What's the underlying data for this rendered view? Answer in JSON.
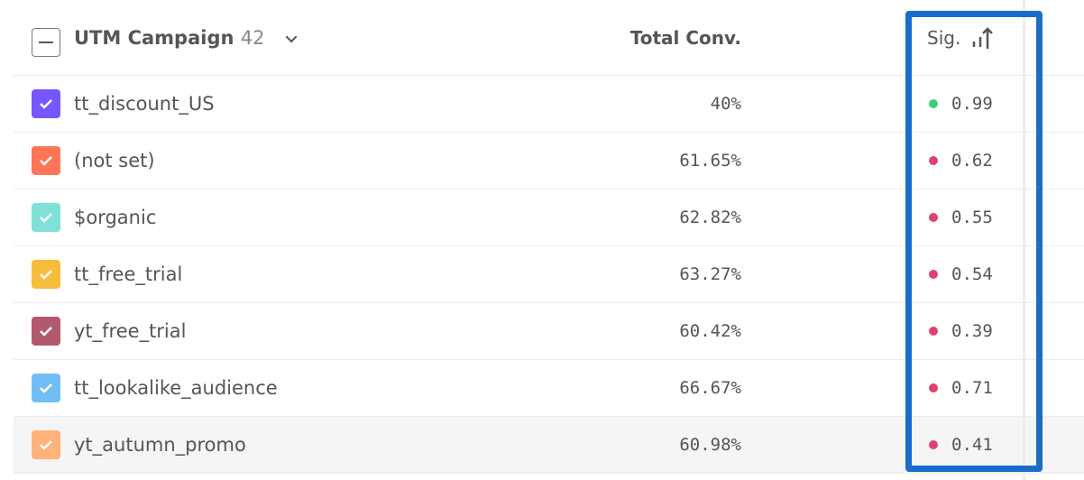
{
  "header": {
    "column1": "UTM Campaign",
    "count": "42",
    "column2": "Total Conv.",
    "column3": "Sig."
  },
  "rows": [
    {
      "name": "tt_discount_US",
      "conv": "40%",
      "sig": "0.99",
      "color": "#7856ff",
      "sig_color": "#3ccf7f"
    },
    {
      "name": "(not set)",
      "conv": "61.65%",
      "sig": "0.62",
      "color": "#ff7557",
      "sig_color": "#e0426e"
    },
    {
      "name": "$organic",
      "conv": "62.82%",
      "sig": "0.55",
      "color": "#80e1d9",
      "sig_color": "#e0426e"
    },
    {
      "name": "tt_free_trial",
      "conv": "63.27%",
      "sig": "0.54",
      "color": "#f8bc3b",
      "sig_color": "#e0426e"
    },
    {
      "name": "yt_free_trial",
      "conv": "60.42%",
      "sig": "0.39",
      "color": "#b2596e",
      "sig_color": "#e0426e"
    },
    {
      "name": "tt_lookalike_audience",
      "conv": "66.67%",
      "sig": "0.71",
      "color": "#72bef4",
      "sig_color": "#e0426e"
    },
    {
      "name": "yt_autumn_promo",
      "conv": "60.98%",
      "sig": "0.41",
      "color": "#ffb27a",
      "sig_color": "#e0426e"
    }
  ],
  "highlight_color": "#1a6ccb"
}
